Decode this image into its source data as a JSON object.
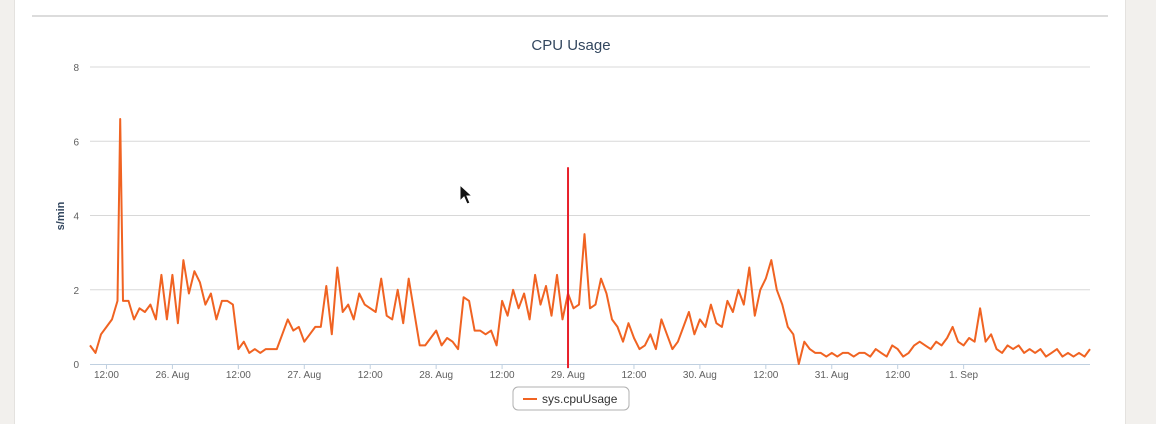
{
  "chart_data": {
    "type": "line",
    "title": "CPU Usage",
    "xlabel": "",
    "ylabel": "s/min",
    "ylim": [
      0,
      8
    ],
    "xlim": [
      "2015-08-25T09:00",
      "2015-09-01T23:00"
    ],
    "grid": true,
    "legend_position": "bottom",
    "y_ticks": [
      "0",
      "2",
      "4",
      "6",
      "8"
    ],
    "x_ticks": [
      {
        "t": "2015-08-25T12:00",
        "label": "12:00"
      },
      {
        "t": "2015-08-26T00:00",
        "label": "26. Aug"
      },
      {
        "t": "2015-08-26T12:00",
        "label": "12:00"
      },
      {
        "t": "2015-08-27T00:00",
        "label": "27. Aug"
      },
      {
        "t": "2015-08-27T12:00",
        "label": "12:00"
      },
      {
        "t": "2015-08-28T00:00",
        "label": "28. Aug"
      },
      {
        "t": "2015-08-28T12:00",
        "label": "12:00"
      },
      {
        "t": "2015-08-29T00:00",
        "label": "29. Aug"
      },
      {
        "t": "2015-08-29T12:00",
        "label": "12:00"
      },
      {
        "t": "2015-08-30T00:00",
        "label": "30. Aug"
      },
      {
        "t": "2015-08-30T12:00",
        "label": "12:00"
      },
      {
        "t": "2015-08-31T00:00",
        "label": "31. Aug"
      },
      {
        "t": "2015-08-31T12:00",
        "label": "12:00"
      },
      {
        "t": "2015-09-01T00:00",
        "label": "1. Sep"
      }
    ],
    "marker_line": {
      "t": "2015-08-29T00:00",
      "y_top": 5.3,
      "color": "#e8202a"
    },
    "series": [
      {
        "name": "sys.cpuUsage",
        "color": "#f06322",
        "points": [
          [
            "2015-08-25T09:00",
            0.5
          ],
          [
            "2015-08-25T10:00",
            0.3
          ],
          [
            "2015-08-25T11:00",
            0.8
          ],
          [
            "2015-08-25T12:00",
            1.0
          ],
          [
            "2015-08-25T13:00",
            1.2
          ],
          [
            "2015-08-25T14:00",
            1.7
          ],
          [
            "2015-08-25T14:30",
            6.6
          ],
          [
            "2015-08-25T15:00",
            1.7
          ],
          [
            "2015-08-25T16:00",
            1.7
          ],
          [
            "2015-08-25T17:00",
            1.2
          ],
          [
            "2015-08-25T18:00",
            1.5
          ],
          [
            "2015-08-25T19:00",
            1.4
          ],
          [
            "2015-08-25T20:00",
            1.6
          ],
          [
            "2015-08-25T21:00",
            1.2
          ],
          [
            "2015-08-25T22:00",
            2.4
          ],
          [
            "2015-08-25T23:00",
            1.2
          ],
          [
            "2015-08-26T00:00",
            2.4
          ],
          [
            "2015-08-26T01:00",
            1.1
          ],
          [
            "2015-08-26T02:00",
            2.8
          ],
          [
            "2015-08-26T03:00",
            1.9
          ],
          [
            "2015-08-26T04:00",
            2.5
          ],
          [
            "2015-08-26T05:00",
            2.2
          ],
          [
            "2015-08-26T06:00",
            1.6
          ],
          [
            "2015-08-26T07:00",
            1.9
          ],
          [
            "2015-08-26T08:00",
            1.2
          ],
          [
            "2015-08-26T09:00",
            1.7
          ],
          [
            "2015-08-26T10:00",
            1.7
          ],
          [
            "2015-08-26T11:00",
            1.6
          ],
          [
            "2015-08-26T12:00",
            0.4
          ],
          [
            "2015-08-26T13:00",
            0.6
          ],
          [
            "2015-08-26T14:00",
            0.3
          ],
          [
            "2015-08-26T15:00",
            0.4
          ],
          [
            "2015-08-26T16:00",
            0.3
          ],
          [
            "2015-08-26T17:00",
            0.4
          ],
          [
            "2015-08-26T18:00",
            0.4
          ],
          [
            "2015-08-26T19:00",
            0.4
          ],
          [
            "2015-08-26T20:00",
            0.8
          ],
          [
            "2015-08-26T21:00",
            1.2
          ],
          [
            "2015-08-26T22:00",
            0.9
          ],
          [
            "2015-08-26T23:00",
            1.0
          ],
          [
            "2015-08-27T00:00",
            0.6
          ],
          [
            "2015-08-27T01:00",
            0.8
          ],
          [
            "2015-08-27T02:00",
            1.0
          ],
          [
            "2015-08-27T03:00",
            1.0
          ],
          [
            "2015-08-27T04:00",
            2.1
          ],
          [
            "2015-08-27T05:00",
            0.8
          ],
          [
            "2015-08-27T06:00",
            2.6
          ],
          [
            "2015-08-27T07:00",
            1.4
          ],
          [
            "2015-08-27T08:00",
            1.6
          ],
          [
            "2015-08-27T09:00",
            1.2
          ],
          [
            "2015-08-27T10:00",
            1.9
          ],
          [
            "2015-08-27T11:00",
            1.6
          ],
          [
            "2015-08-27T12:00",
            1.5
          ],
          [
            "2015-08-27T13:00",
            1.4
          ],
          [
            "2015-08-27T14:00",
            2.3
          ],
          [
            "2015-08-27T15:00",
            1.3
          ],
          [
            "2015-08-27T16:00",
            1.2
          ],
          [
            "2015-08-27T17:00",
            2.0
          ],
          [
            "2015-08-27T18:00",
            1.1
          ],
          [
            "2015-08-27T19:00",
            2.3
          ],
          [
            "2015-08-27T20:00",
            1.4
          ],
          [
            "2015-08-27T21:00",
            0.5
          ],
          [
            "2015-08-27T22:00",
            0.5
          ],
          [
            "2015-08-27T23:00",
            0.7
          ],
          [
            "2015-08-28T00:00",
            0.9
          ],
          [
            "2015-08-28T01:00",
            0.5
          ],
          [
            "2015-08-28T02:00",
            0.7
          ],
          [
            "2015-08-28T03:00",
            0.6
          ],
          [
            "2015-08-28T04:00",
            0.4
          ],
          [
            "2015-08-28T05:00",
            1.8
          ],
          [
            "2015-08-28T06:00",
            1.7
          ],
          [
            "2015-08-28T07:00",
            0.9
          ],
          [
            "2015-08-28T08:00",
            0.9
          ],
          [
            "2015-08-28T09:00",
            0.8
          ],
          [
            "2015-08-28T10:00",
            0.9
          ],
          [
            "2015-08-28T11:00",
            0.5
          ],
          [
            "2015-08-28T12:00",
            1.7
          ],
          [
            "2015-08-28T13:00",
            1.3
          ],
          [
            "2015-08-28T14:00",
            2.0
          ],
          [
            "2015-08-28T15:00",
            1.5
          ],
          [
            "2015-08-28T16:00",
            1.9
          ],
          [
            "2015-08-28T17:00",
            1.2
          ],
          [
            "2015-08-28T18:00",
            2.4
          ],
          [
            "2015-08-28T19:00",
            1.6
          ],
          [
            "2015-08-28T20:00",
            2.1
          ],
          [
            "2015-08-28T21:00",
            1.3
          ],
          [
            "2015-08-28T22:00",
            2.4
          ],
          [
            "2015-08-28T23:00",
            1.2
          ],
          [
            "2015-08-29T00:00",
            1.9
          ],
          [
            "2015-08-29T01:00",
            1.5
          ],
          [
            "2015-08-29T02:00",
            1.6
          ],
          [
            "2015-08-29T03:00",
            3.5
          ],
          [
            "2015-08-29T04:00",
            1.5
          ],
          [
            "2015-08-29T05:00",
            1.6
          ],
          [
            "2015-08-29T06:00",
            2.3
          ],
          [
            "2015-08-29T07:00",
            1.9
          ],
          [
            "2015-08-29T08:00",
            1.2
          ],
          [
            "2015-08-29T09:00",
            1.0
          ],
          [
            "2015-08-29T10:00",
            0.6
          ],
          [
            "2015-08-29T11:00",
            1.1
          ],
          [
            "2015-08-29T12:00",
            0.7
          ],
          [
            "2015-08-29T13:00",
            0.4
          ],
          [
            "2015-08-29T14:00",
            0.5
          ],
          [
            "2015-08-29T15:00",
            0.8
          ],
          [
            "2015-08-29T16:00",
            0.4
          ],
          [
            "2015-08-29T17:00",
            1.2
          ],
          [
            "2015-08-29T18:00",
            0.8
          ],
          [
            "2015-08-29T19:00",
            0.4
          ],
          [
            "2015-08-29T20:00",
            0.6
          ],
          [
            "2015-08-29T21:00",
            1.0
          ],
          [
            "2015-08-29T22:00",
            1.4
          ],
          [
            "2015-08-29T23:00",
            0.8
          ],
          [
            "2015-08-30T00:00",
            1.2
          ],
          [
            "2015-08-30T01:00",
            1.0
          ],
          [
            "2015-08-30T02:00",
            1.6
          ],
          [
            "2015-08-30T03:00",
            1.1
          ],
          [
            "2015-08-30T04:00",
            1.0
          ],
          [
            "2015-08-30T05:00",
            1.7
          ],
          [
            "2015-08-30T06:00",
            1.4
          ],
          [
            "2015-08-30T07:00",
            2.0
          ],
          [
            "2015-08-30T08:00",
            1.6
          ],
          [
            "2015-08-30T09:00",
            2.6
          ],
          [
            "2015-08-30T10:00",
            1.3
          ],
          [
            "2015-08-30T11:00",
            2.0
          ],
          [
            "2015-08-30T12:00",
            2.3
          ],
          [
            "2015-08-30T13:00",
            2.8
          ],
          [
            "2015-08-30T14:00",
            2.0
          ],
          [
            "2015-08-30T15:00",
            1.6
          ],
          [
            "2015-08-30T16:00",
            1.0
          ],
          [
            "2015-08-30T17:00",
            0.8
          ],
          [
            "2015-08-30T18:00",
            0.0
          ],
          [
            "2015-08-30T19:00",
            0.6
          ],
          [
            "2015-08-30T20:00",
            0.4
          ],
          [
            "2015-08-30T21:00",
            0.3
          ],
          [
            "2015-08-30T22:00",
            0.3
          ],
          [
            "2015-08-30T23:00",
            0.2
          ],
          [
            "2015-08-31T00:00",
            0.3
          ],
          [
            "2015-08-31T01:00",
            0.2
          ],
          [
            "2015-08-31T02:00",
            0.3
          ],
          [
            "2015-08-31T03:00",
            0.3
          ],
          [
            "2015-08-31T04:00",
            0.2
          ],
          [
            "2015-08-31T05:00",
            0.3
          ],
          [
            "2015-08-31T06:00",
            0.3
          ],
          [
            "2015-08-31T07:00",
            0.2
          ],
          [
            "2015-08-31T08:00",
            0.4
          ],
          [
            "2015-08-31T09:00",
            0.3
          ],
          [
            "2015-08-31T10:00",
            0.2
          ],
          [
            "2015-08-31T11:00",
            0.5
          ],
          [
            "2015-08-31T12:00",
            0.4
          ],
          [
            "2015-08-31T13:00",
            0.2
          ],
          [
            "2015-08-31T14:00",
            0.3
          ],
          [
            "2015-08-31T15:00",
            0.5
          ],
          [
            "2015-08-31T16:00",
            0.6
          ],
          [
            "2015-08-31T17:00",
            0.5
          ],
          [
            "2015-08-31T18:00",
            0.4
          ],
          [
            "2015-08-31T19:00",
            0.6
          ],
          [
            "2015-08-31T20:00",
            0.5
          ],
          [
            "2015-08-31T21:00",
            0.7
          ],
          [
            "2015-08-31T22:00",
            1.0
          ],
          [
            "2015-08-31T23:00",
            0.6
          ],
          [
            "2015-09-01T00:00",
            0.5
          ],
          [
            "2015-09-01T01:00",
            0.7
          ],
          [
            "2015-09-01T02:00",
            0.6
          ],
          [
            "2015-09-01T03:00",
            1.5
          ],
          [
            "2015-09-01T04:00",
            0.6
          ],
          [
            "2015-09-01T05:00",
            0.8
          ],
          [
            "2015-09-01T06:00",
            0.4
          ],
          [
            "2015-09-01T07:00",
            0.3
          ],
          [
            "2015-09-01T08:00",
            0.5
          ],
          [
            "2015-09-01T09:00",
            0.4
          ],
          [
            "2015-09-01T10:00",
            0.5
          ],
          [
            "2015-09-01T11:00",
            0.3
          ],
          [
            "2015-09-01T12:00",
            0.4
          ],
          [
            "2015-09-01T13:00",
            0.3
          ],
          [
            "2015-09-01T14:00",
            0.4
          ],
          [
            "2015-09-01T15:00",
            0.2
          ],
          [
            "2015-09-01T16:00",
            0.3
          ],
          [
            "2015-09-01T17:00",
            0.4
          ],
          [
            "2015-09-01T18:00",
            0.2
          ],
          [
            "2015-09-01T19:00",
            0.3
          ],
          [
            "2015-09-01T20:00",
            0.2
          ],
          [
            "2015-09-01T21:00",
            0.3
          ],
          [
            "2015-09-01T22:00",
            0.2
          ],
          [
            "2015-09-01T23:00",
            0.4
          ]
        ]
      }
    ]
  }
}
